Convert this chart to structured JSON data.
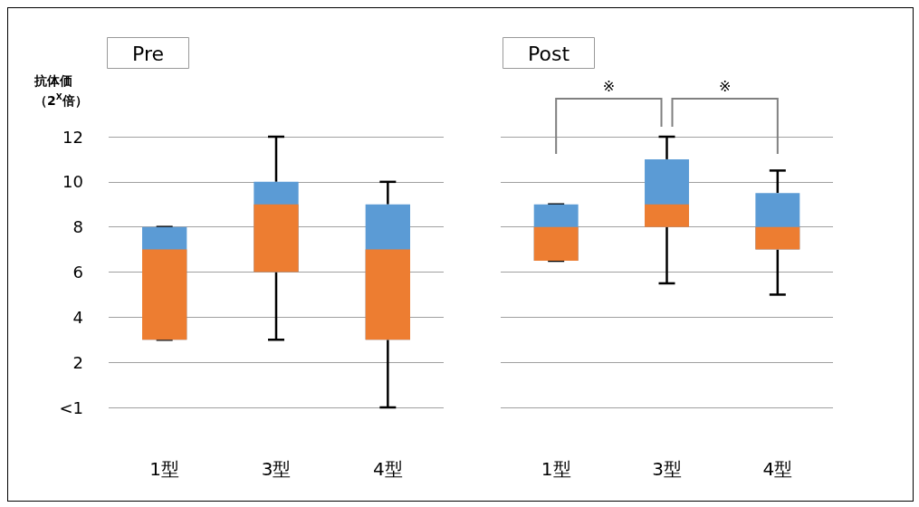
{
  "chart_data": [
    {
      "type": "box",
      "title": "Pre",
      "ylabel": "抗体価（2$^{X}$倍）",
      "categories": [
        "1型",
        "3型",
        "4型"
      ],
      "series": [
        {
          "color": "#5b9bd5",
          "colors": [
            "#ed7d31",
            "#ed7d31",
            "#ed7d31"
          ],
          "boxes": [
            {
              "low": 3,
              "q1": 3,
              "median": 7,
              "q3": 8,
              "high": 8
            },
            {
              "low": 3,
              "q1": 6,
              "median": 9,
              "q3": 10,
              "high": 12
            },
            {
              "low": 0,
              "q1": 3,
              "median": 7,
              "q3": 9,
              "high": 10
            }
          ]
        }
      ],
      "ylim": [
        0,
        12
      ],
      "yticks": [
        {
          "value": 0,
          "label": "<1"
        },
        2,
        4,
        6,
        8,
        10,
        12
      ],
      "grid": "y"
    },
    {
      "type": "box",
      "title": "Post",
      "categories": [
        "1型",
        "3型",
        "4型"
      ],
      "series": [
        {
          "color": "#5b9bd5",
          "colors": [
            "#ed7d31",
            "#ed7d31",
            "#ed7d31"
          ],
          "boxes": [
            {
              "low": 6.5,
              "q1": 6.5,
              "median": 8,
              "q3": 9,
              "high": 9
            },
            {
              "low": 5.5,
              "q1": 8,
              "median": 9,
              "q3": 11,
              "high": 12
            },
            {
              "low": 5,
              "q1": 7,
              "median": 8,
              "q3": 9.5,
              "high": 10.5
            }
          ]
        }
      ],
      "ylim": [
        0,
        12
      ],
      "yticks": [
        0,
        2,
        4,
        6,
        8,
        10,
        12
      ],
      "grid": "y",
      "tick_labels": "x",
      "annotations": [
        "※",
        "※"
      ]
    }
  ]
}
